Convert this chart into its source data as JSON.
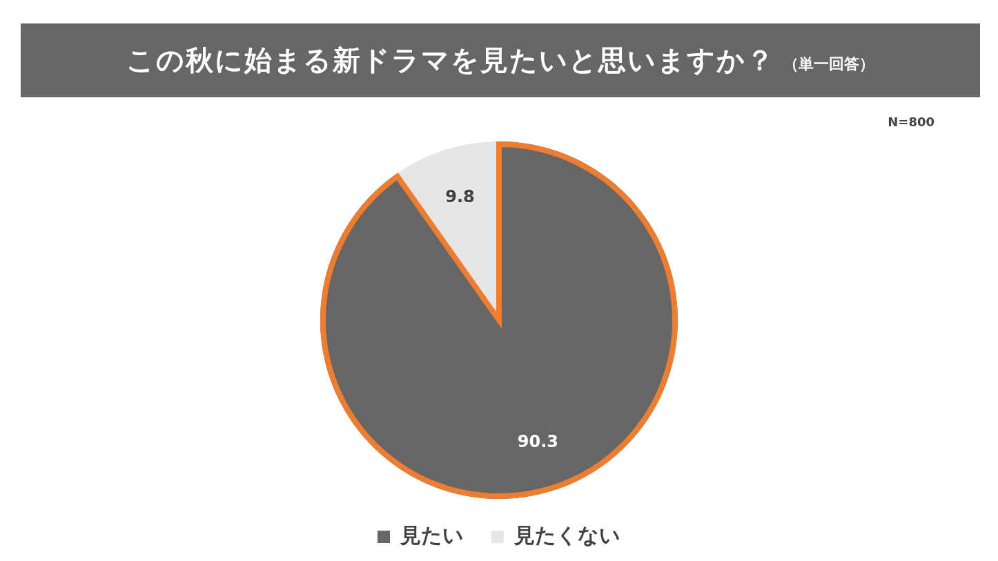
{
  "chart_data": {
    "type": "pie",
    "title": "この秋に始まる新ドラマを見たいと思いますか？",
    "subtitle": "（単一回答）",
    "annotations": [
      "N=800"
    ],
    "categories": [
      "見たい",
      "見たくない"
    ],
    "values": [
      90.3,
      9.8
    ],
    "colors": [
      "#666666",
      "#e7e6e6"
    ],
    "data_labels": true,
    "legend": "bottom"
  }
}
